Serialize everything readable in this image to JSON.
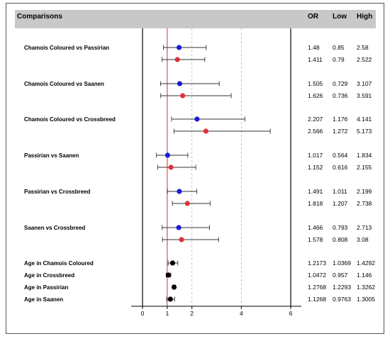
{
  "header": {
    "title": "Comparisons",
    "col_or": "OR",
    "col_low": "Low",
    "col_high": "High"
  },
  "chart_data": {
    "type": "forest",
    "xlim": [
      0,
      6
    ],
    "x_ticks": [
      "0",
      "1",
      "2",
      "4",
      "6"
    ],
    "reference_line": 1,
    "grid": "dashed vertical at 2 and 4",
    "colors": {
      "blue": "#1a1adb",
      "red": "#e0303a",
      "black": "#000000",
      "ref": "#e05050"
    },
    "groups": [
      {
        "label": "Chamois Coloured vs Passirian",
        "rows": [
          {
            "or": "1.48",
            "low": "0.85",
            "high": "2.58",
            "color": "blue"
          },
          {
            "or": "1.411",
            "low": "0.79",
            "high": "2.522",
            "color": "red"
          }
        ]
      },
      {
        "label": "Chamois Coloured vs Saanen",
        "rows": [
          {
            "or": "1.505",
            "low": "0.729",
            "high": "3.107",
            "color": "blue"
          },
          {
            "or": "1.626",
            "low": "0.736",
            "high": "3.591",
            "color": "red"
          }
        ]
      },
      {
        "label": "Chamois Coloured vs Crossbreed",
        "rows": [
          {
            "or": "2.207",
            "low": "1.176",
            "high": "4.141",
            "color": "blue"
          },
          {
            "or": "2.566",
            "low": "1.272",
            "high": "5.173",
            "color": "red"
          }
        ]
      },
      {
        "label": "Passirian vs Saanen",
        "rows": [
          {
            "or": "1.017",
            "low": "0.564",
            "high": "1.834",
            "color": "blue"
          },
          {
            "or": "1.152",
            "low": "0.616",
            "high": "2.155",
            "color": "red"
          }
        ]
      },
      {
        "label": "Passirian vs Crossbreed",
        "rows": [
          {
            "or": "1.491",
            "low": "1.011",
            "high": "2.199",
            "color": "blue"
          },
          {
            "or": "1.818",
            "low": "1.207",
            "high": "2.738",
            "color": "red"
          }
        ]
      },
      {
        "label": "Saanen vs Crossbreed",
        "rows": [
          {
            "or": "1.466",
            "low": "0.793",
            "high": "2.713",
            "color": "blue"
          },
          {
            "or": "1.578",
            "low": "0.808",
            "high": "3.08",
            "color": "red"
          }
        ]
      }
    ],
    "age_rows": [
      {
        "label": "Age in Chamois Coloured",
        "or": "1.2173",
        "low": "1.0369",
        "high": "1.4292",
        "color": "black"
      },
      {
        "label": "Age in Crossbreed",
        "or": "1.0472",
        "low": "0.957",
        "high": "1.146",
        "color": "black"
      },
      {
        "label": "Age in Passirian",
        "or": "1.2768",
        "low": "1.2293",
        "high": "1.3262",
        "color": "black"
      },
      {
        "label": "Age in Saanen",
        "or": "1.1268",
        "low": "0.9763",
        "high": "1.3005",
        "color": "black"
      }
    ]
  }
}
